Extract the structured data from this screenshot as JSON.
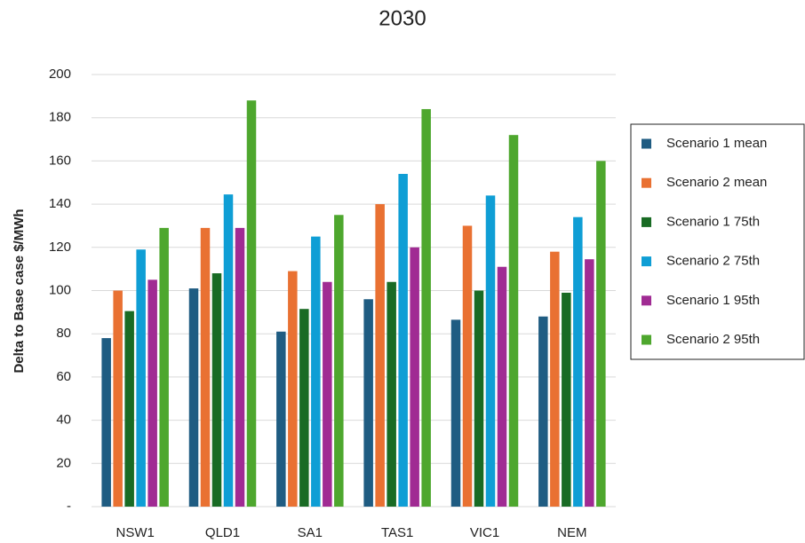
{
  "chart_data": {
    "type": "bar",
    "title": "2030",
    "y_label": "Delta to Base case $/MWh",
    "categories": [
      "NSW1",
      "QLD1",
      "SA1",
      "TAS1",
      "VIC1",
      "NEM"
    ],
    "series": [
      {
        "name": "Scenario 1 mean",
        "color": "#1f5c82",
        "values": [
          78,
          101,
          81,
          96,
          86.5,
          88
        ]
      },
      {
        "name": "Scenario 2 mean",
        "color": "#e97132",
        "values": [
          100,
          129,
          109,
          140,
          130,
          118
        ]
      },
      {
        "name": "Scenario 1 75th",
        "color": "#196b24",
        "values": [
          90.5,
          108,
          91.5,
          104,
          100,
          99
        ]
      },
      {
        "name": "Scenario 2 75th",
        "color": "#0f9ed5",
        "values": [
          119,
          144.5,
          125,
          154,
          144,
          134
        ]
      },
      {
        "name": "Scenario 1 95th",
        "color": "#a02b93",
        "values": [
          105,
          129,
          104,
          120,
          111,
          114.5
        ]
      },
      {
        "name": "Scenario 2 95th",
        "color": "#4ea72e",
        "values": [
          129,
          188,
          135,
          184,
          172,
          160
        ]
      }
    ],
    "ylim": [
      0,
      200
    ],
    "yticks": [
      {
        "value": 0,
        "label": "-"
      },
      20,
      40,
      60,
      80,
      100,
      120,
      140,
      160,
      180,
      200
    ],
    "grid": true,
    "legend": "right"
  }
}
